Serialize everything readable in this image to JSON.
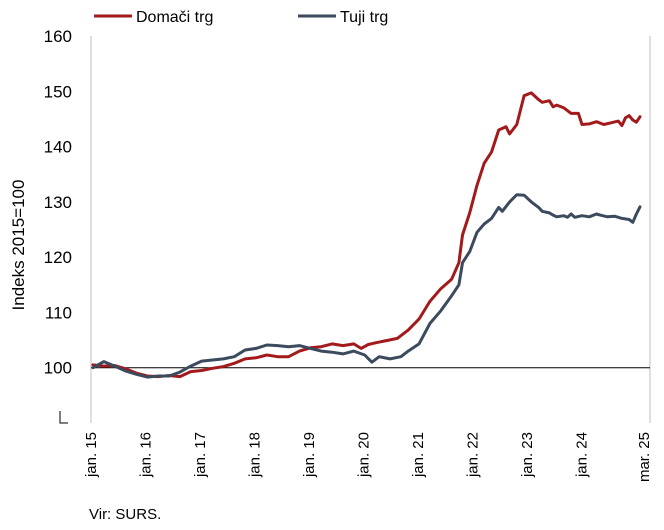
{
  "chart_data": {
    "type": "line",
    "title": "",
    "xlabel": "",
    "ylabel": "Indeks 2015=100",
    "ylim": [
      90,
      160
    ],
    "yticks": [
      100,
      110,
      120,
      130,
      140,
      150,
      160
    ],
    "reference_line": 100,
    "grid": false,
    "legend_position": "top-left",
    "source": "Vir: SURS.",
    "xtick_labels": [
      "jan. 15",
      "jan. 16",
      "jan. 17",
      "jan. 18",
      "jan. 19",
      "jan. 20",
      "jan. 21",
      "jan. 22",
      "jan. 23",
      "jan. 24",
      "mar. 25"
    ],
    "x_start": "2015-01",
    "x_end": "2025-03",
    "series": [
      {
        "name": "Domači trg",
        "color": "#a31a1c",
        "values": [
          [
            0,
            100.5
          ],
          [
            3,
            100.3
          ],
          [
            6,
            100.4
          ],
          [
            9,
            99.8
          ],
          [
            12,
            99.0
          ],
          [
            15,
            98.5
          ],
          [
            18,
            98.4
          ],
          [
            21,
            98.6
          ],
          [
            24,
            98.4
          ],
          [
            27,
            99.3
          ],
          [
            30,
            99.5
          ],
          [
            33,
            99.9
          ],
          [
            36,
            100.2
          ],
          [
            39,
            100.8
          ],
          [
            42,
            101.6
          ],
          [
            45,
            101.8
          ],
          [
            48,
            102.3
          ],
          [
            51,
            102.0
          ],
          [
            54,
            102.0
          ],
          [
            57,
            103.0
          ],
          [
            60,
            103.6
          ],
          [
            63,
            103.8
          ],
          [
            66,
            104.3
          ],
          [
            69,
            104.0
          ],
          [
            72,
            104.3
          ],
          [
            74,
            103.5
          ],
          [
            76,
            104.2
          ],
          [
            78,
            104.5
          ],
          [
            81,
            104.9
          ],
          [
            84,
            105.3
          ],
          [
            87,
            106.8
          ],
          [
            90,
            108.8
          ],
          [
            93,
            112.0
          ],
          [
            96,
            114.3
          ],
          [
            99,
            116.0
          ],
          [
            101,
            119.0
          ],
          [
            102,
            124.0
          ],
          [
            104,
            128.0
          ],
          [
            106,
            133.0
          ],
          [
            108,
            137.0
          ],
          [
            110,
            139.0
          ],
          [
            112,
            143.0
          ],
          [
            114,
            143.6
          ],
          [
            115,
            142.3
          ],
          [
            117,
            144.0
          ],
          [
            119,
            149.2
          ],
          [
            121,
            149.7
          ],
          [
            123,
            148.5
          ],
          [
            124,
            148.0
          ],
          [
            126,
            148.3
          ],
          [
            127,
            147.2
          ],
          [
            128,
            147.5
          ],
          [
            130,
            147.0
          ],
          [
            132,
            146.0
          ],
          [
            134,
            146.0
          ],
          [
            135,
            144.0
          ],
          [
            137,
            144.1
          ],
          [
            139,
            144.5
          ],
          [
            141,
            144.0
          ],
          [
            143,
            144.3
          ],
          [
            145,
            144.6
          ],
          [
            146,
            143.8
          ],
          [
            147,
            145.2
          ],
          [
            148,
            145.6
          ],
          [
            149,
            144.8
          ],
          [
            150,
            144.4
          ],
          [
            151,
            145.4
          ]
        ]
      },
      {
        "name": "Tuji trg",
        "color": "#3c4a5e",
        "values": [
          [
            0,
            100.0
          ],
          [
            3,
            101.1
          ],
          [
            6,
            100.3
          ],
          [
            9,
            99.4
          ],
          [
            12,
            98.8
          ],
          [
            15,
            98.3
          ],
          [
            18,
            98.5
          ],
          [
            21,
            98.5
          ],
          [
            24,
            99.2
          ],
          [
            27,
            100.3
          ],
          [
            30,
            101.2
          ],
          [
            33,
            101.4
          ],
          [
            36,
            101.6
          ],
          [
            39,
            102.0
          ],
          [
            42,
            103.2
          ],
          [
            45,
            103.5
          ],
          [
            48,
            104.1
          ],
          [
            51,
            104.0
          ],
          [
            54,
            103.8
          ],
          [
            57,
            104.0
          ],
          [
            60,
            103.5
          ],
          [
            63,
            103.0
          ],
          [
            66,
            102.8
          ],
          [
            69,
            102.5
          ],
          [
            72,
            103.0
          ],
          [
            75,
            102.3
          ],
          [
            77,
            101.0
          ],
          [
            79,
            102.0
          ],
          [
            82,
            101.6
          ],
          [
            85,
            102.0
          ],
          [
            87,
            103.0
          ],
          [
            90,
            104.3
          ],
          [
            93,
            108.0
          ],
          [
            96,
            110.3
          ],
          [
            99,
            113.0
          ],
          [
            101,
            115.0
          ],
          [
            102,
            119.0
          ],
          [
            104,
            121.0
          ],
          [
            106,
            124.5
          ],
          [
            108,
            126.0
          ],
          [
            110,
            127.0
          ],
          [
            112,
            129.0
          ],
          [
            113,
            128.3
          ],
          [
            115,
            130.0
          ],
          [
            117,
            131.3
          ],
          [
            119,
            131.2
          ],
          [
            121,
            130.0
          ],
          [
            123,
            129.0
          ],
          [
            124,
            128.3
          ],
          [
            126,
            128.0
          ],
          [
            127,
            127.6
          ],
          [
            128,
            127.3
          ],
          [
            130,
            127.5
          ],
          [
            131,
            127.2
          ],
          [
            132,
            127.8
          ],
          [
            133,
            127.2
          ],
          [
            135,
            127.5
          ],
          [
            137,
            127.3
          ],
          [
            139,
            127.8
          ],
          [
            140,
            127.6
          ],
          [
            142,
            127.3
          ],
          [
            144,
            127.4
          ],
          [
            146,
            127.0
          ],
          [
            148,
            126.8
          ],
          [
            149,
            126.3
          ],
          [
            150,
            127.8
          ],
          [
            151,
            129.1
          ]
        ]
      }
    ]
  }
}
